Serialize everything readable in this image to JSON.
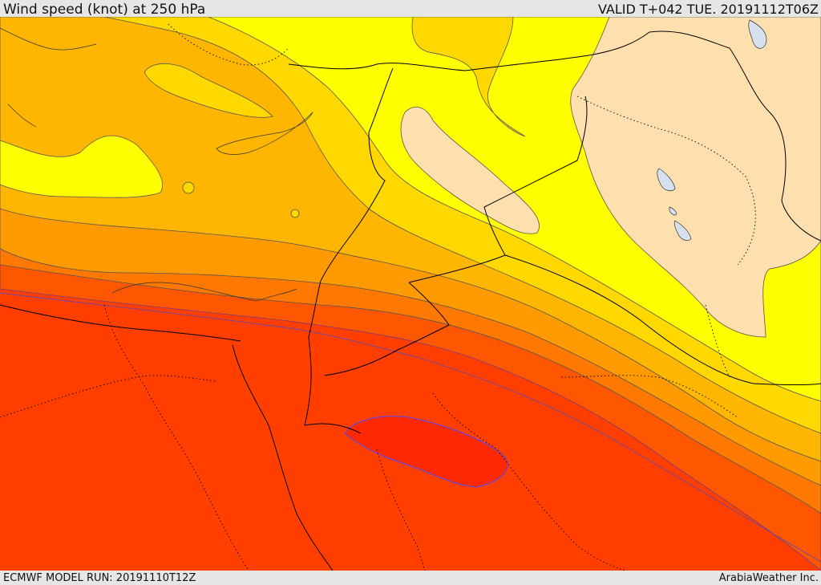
{
  "header": {
    "title": "Wind speed (knot) at 250 hPa",
    "valid": "VALID T+042 TUE. 20191112T06Z"
  },
  "footer": {
    "model_run": "ECMWF MODEL RUN: 20191110T12Z",
    "credit": "ArabiaWeather Inc."
  },
  "map": {
    "field": "wind-speed-filled-contours",
    "levels_colors": [
      "#fde0ae",
      "#ffff00",
      "#ffd800",
      "#ffb600",
      "#ff9a00",
      "#ff7800",
      "#ff5600",
      "#ff3e00",
      "#ff2800"
    ],
    "contour_line_color": "#555555",
    "max_contour_color": "#4c4cff",
    "border_color": "#000000",
    "water_color": "#d6e0ee"
  }
}
